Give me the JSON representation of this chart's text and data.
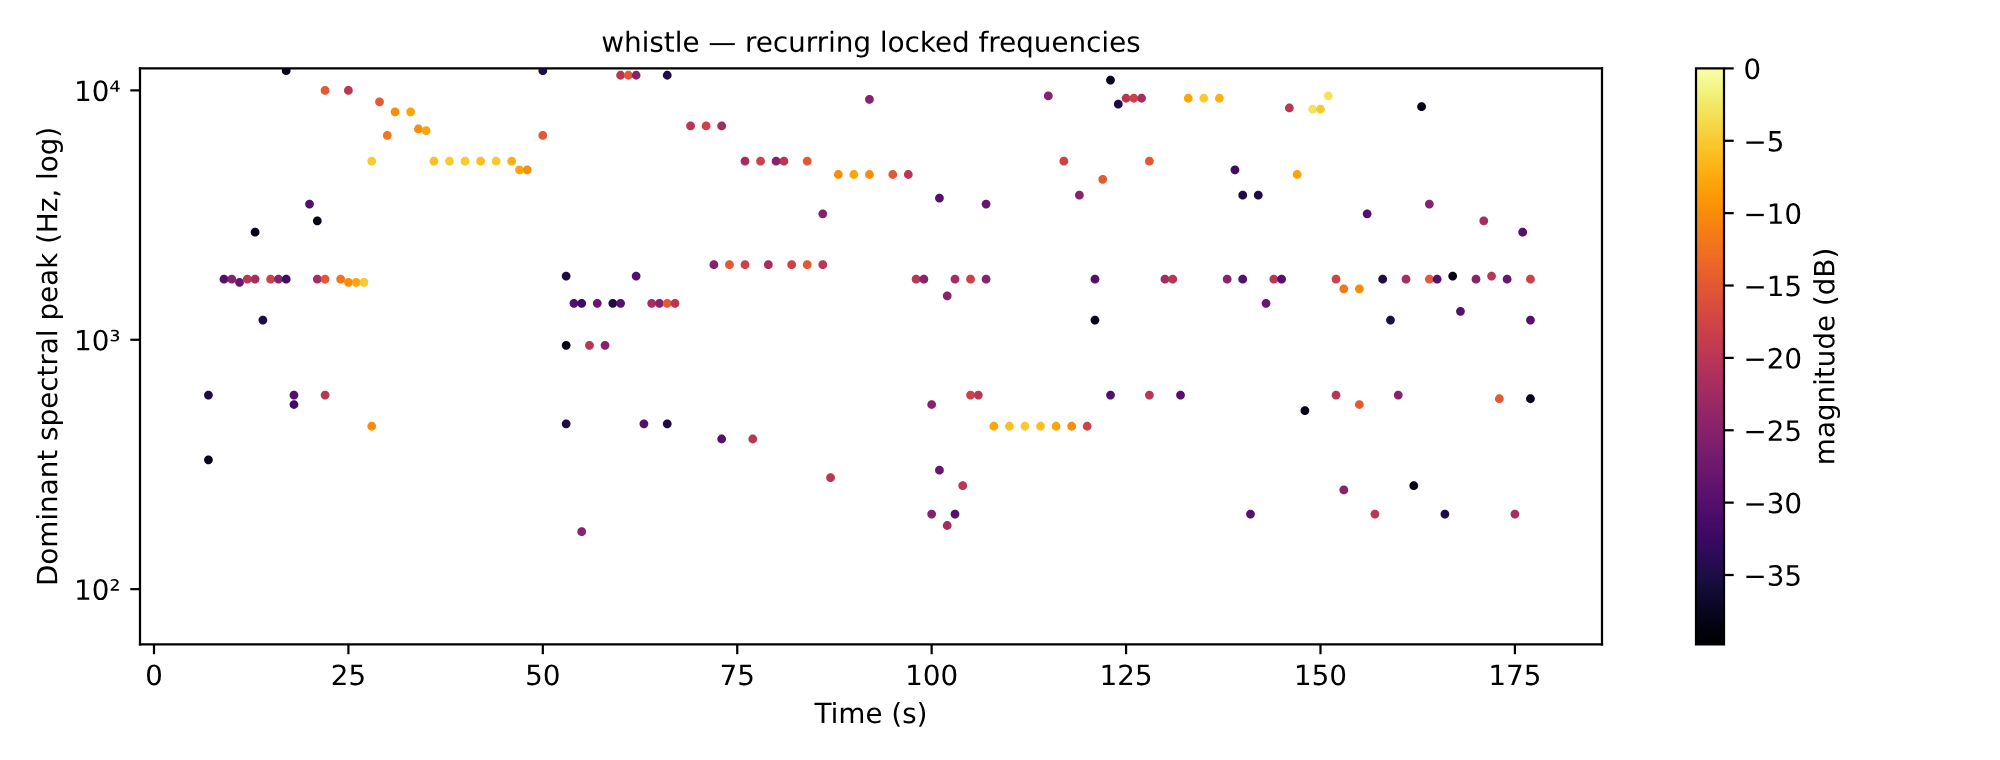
{
  "chart_data": {
    "type": "scatter",
    "title": "whistle — recurring locked frequencies",
    "xlabel": "Time (s)",
    "ylabel": "Dominant spectral peak (Hz, log)",
    "clabel": "magnitude (dB)",
    "x": [
      7,
      7,
      9,
      10,
      11,
      12,
      13,
      13,
      14,
      15,
      16,
      17,
      17,
      18,
      18,
      20,
      21,
      21,
      22,
      22,
      24,
      25,
      26,
      27,
      25,
      22,
      28,
      28,
      29,
      30,
      31,
      33,
      34,
      35,
      36,
      38,
      40,
      42,
      44,
      46,
      47,
      48,
      50,
      50,
      53,
      53,
      53,
      54,
      55,
      56,
      57,
      58,
      59,
      60,
      61,
      62,
      64,
      65,
      66,
      67,
      63,
      66,
      66,
      55,
      60,
      62,
      69,
      71,
      73,
      72,
      73,
      74,
      76,
      76,
      77,
      78,
      79,
      80,
      81,
      82,
      84,
      84,
      86,
      86,
      87,
      88,
      90,
      92,
      92,
      95,
      97,
      98,
      99,
      100,
      100,
      101,
      101,
      102,
      102,
      103,
      103,
      104,
      105,
      105,
      106,
      107,
      107,
      108,
      110,
      112,
      114,
      116,
      118,
      120,
      115,
      117,
      119,
      121,
      121,
      122,
      123,
      123,
      124,
      125,
      126,
      127,
      128,
      128,
      130,
      131,
      132,
      133,
      135,
      137,
      138,
      139,
      140,
      140,
      141,
      142,
      143,
      144,
      145,
      146,
      147,
      148,
      149,
      150,
      151,
      152,
      152,
      153,
      153,
      155,
      155,
      156,
      157,
      158,
      159,
      160,
      161,
      162,
      163,
      164,
      164,
      165,
      166,
      167,
      168,
      170,
      171,
      172,
      173,
      174,
      175,
      176,
      177,
      177,
      177
    ],
    "values": [
      330,
      600,
      1750,
      1750,
      1700,
      1750,
      2700,
      1750,
      1200,
      1750,
      1750,
      12000,
      1750,
      600,
      550,
      3500,
      3000,
      1750,
      600,
      1750,
      1750,
      1700,
      1700,
      1700,
      10000,
      10000,
      5200,
      450,
      9000,
      6600,
      8200,
      8200,
      7000,
      6900,
      5200,
      5200,
      5200,
      5200,
      5200,
      5200,
      4800,
      4800,
      12000,
      6600,
      950,
      1800,
      460,
      1400,
      1400,
      950,
      1400,
      950,
      1400,
      11500,
      11500,
      1800,
      1400,
      1400,
      1400,
      1400,
      460,
      460,
      11500,
      170,
      1400,
      11500,
      7200,
      7200,
      7200,
      2000,
      400,
      2000,
      5200,
      2000,
      400,
      5200,
      2000,
      5200,
      5200,
      2000,
      2000,
      5200,
      2000,
      3200,
      280,
      4600,
      4600,
      4600,
      9200,
      4600,
      4600,
      1750,
      1750,
      550,
      200,
      3700,
      300,
      1500,
      180,
      200,
      1750,
      260,
      1750,
      600,
      600,
      1750,
      3500,
      450,
      450,
      450,
      450,
      450,
      450,
      450,
      9500,
      5200,
      3800,
      1200,
      1750,
      4400,
      11000,
      600,
      8800,
      9300,
      9300,
      9300,
      5200,
      600,
      1750,
      1750,
      600,
      9300,
      9300,
      9300,
      1750,
      4800,
      3800,
      1750,
      200,
      3800,
      1400,
      1750,
      1750,
      8500,
      4600,
      520,
      8400,
      8400,
      9500,
      600,
      1750,
      1600,
      250,
      550,
      1600,
      3200,
      200,
      1750,
      1200,
      600,
      1750,
      260,
      8600,
      1750,
      3500,
      1750,
      200,
      1800,
      1300,
      1750,
      3000,
      1800,
      580,
      1750,
      200,
      2700,
      1750,
      1200,
      580
    ],
    "cvalues": [
      -38,
      -35,
      -30,
      -25,
      -28,
      -20,
      -38,
      -22,
      -35,
      -18,
      -25,
      -38,
      -32,
      -30,
      -32,
      -30,
      -38,
      -22,
      -20,
      -15,
      -12,
      -10,
      -8,
      -5,
      -20,
      -15,
      -5,
      -10,
      -15,
      -12,
      -10,
      -8,
      -10,
      -8,
      -6,
      -5,
      -5,
      -6,
      -5,
      -7,
      -8,
      -10,
      -35,
      -15,
      -38,
      -35,
      -35,
      -30,
      -32,
      -20,
      -28,
      -25,
      -35,
      -20,
      -15,
      -30,
      -22,
      -25,
      -15,
      -20,
      -30,
      -35,
      -35,
      -25,
      -30,
      -25,
      -20,
      -18,
      -22,
      -25,
      -30,
      -15,
      -22,
      -18,
      -20,
      -18,
      -22,
      -25,
      -20,
      -18,
      -15,
      -15,
      -20,
      -25,
      -20,
      -10,
      -8,
      -10,
      -25,
      -15,
      -20,
      -20,
      -25,
      -25,
      -25,
      -30,
      -28,
      -25,
      -22,
      -30,
      -22,
      -20,
      -18,
      -18,
      -20,
      -25,
      -28,
      -8,
      -6,
      -5,
      -6,
      -8,
      -10,
      -18,
      -25,
      -18,
      -25,
      -38,
      -30,
      -15,
      -38,
      -30,
      -35,
      -20,
      -18,
      -22,
      -15,
      -20,
      -22,
      -20,
      -30,
      -8,
      -5,
      -7,
      -25,
      -32,
      -35,
      -30,
      -30,
      -35,
      -28,
      -20,
      -30,
      -20,
      -8,
      -38,
      -3,
      -5,
      -3,
      -20,
      -18,
      -12,
      -25,
      -15,
      -10,
      -30,
      -20,
      -35,
      -35,
      -25,
      -22,
      -38,
      -38,
      -15,
      -25,
      -30,
      -35,
      -38,
      -30,
      -25,
      -22,
      -20,
      -15,
      -28,
      -22,
      -30,
      -18,
      -30,
      -38
    ],
    "xlim": [
      -1.8,
      186.2
    ],
    "ylim": [
      60,
      12250
    ],
    "xticks": [
      0,
      25,
      50,
      75,
      100,
      125,
      150,
      175
    ],
    "yticks": [
      {
        "value": 100,
        "label": "10²"
      },
      {
        "value": 1000,
        "label": "10³"
      },
      {
        "value": 10000,
        "label": "10⁴"
      }
    ],
    "log": "y",
    "clim": [
      -39.8,
      0
    ],
    "cticks": [
      0,
      -5,
      -10,
      -15,
      -20,
      -25,
      -30,
      -35
    ],
    "marker": "circle"
  }
}
